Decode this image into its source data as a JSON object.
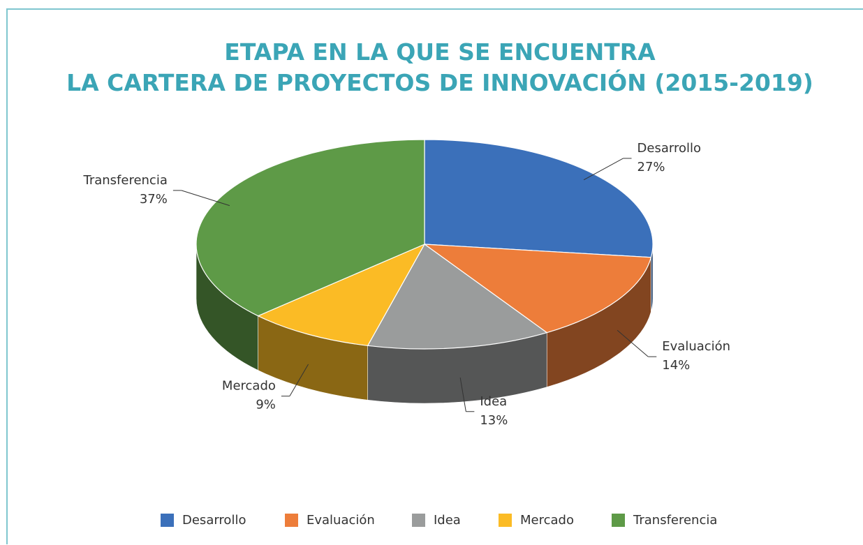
{
  "chart_data": {
    "type": "pie",
    "title": [
      "ETAPA EN LA QUE SE ENCUENTRA",
      "LA CARTERA DE PROYECTOS DE INNOVACIÓN (2015-2019)"
    ],
    "categories": [
      "Desarrollo",
      "Evaluación",
      "Idea",
      "Mercado",
      "Transferencia"
    ],
    "values": [
      27,
      14,
      13,
      9,
      37
    ],
    "value_labels": [
      "27%",
      "14%",
      "13%",
      "9%",
      "37%"
    ],
    "colors": [
      "#3b70ba",
      "#ed7d3a",
      "#9a9c9c",
      "#fbbb25",
      "#5e9a47"
    ],
    "legend": "bottom"
  }
}
